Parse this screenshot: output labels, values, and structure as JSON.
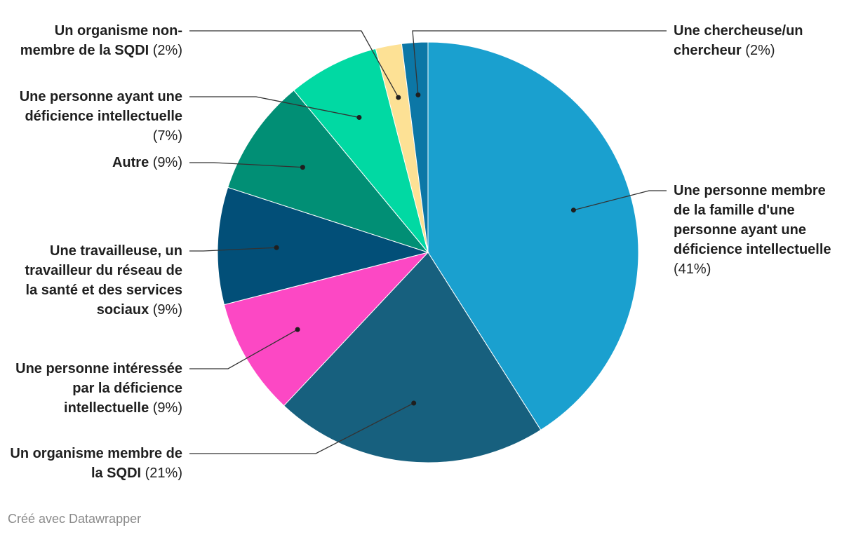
{
  "chart_data": {
    "type": "pie",
    "title": "",
    "slices": [
      {
        "label": "Une personne membre de la famille d'une personne ayant une déficience intellectuelle",
        "pct_label": "(41%)",
        "value": 41,
        "color": "#1aa0cf"
      },
      {
        "label": "Un organisme membre de la SQDI",
        "pct_label": "(21%)",
        "value": 21,
        "color": "#17607e"
      },
      {
        "label": "Une personne intéressée par la déficience intellectuelle",
        "pct_label": "(9%)",
        "value": 9,
        "color": "#fc48c4"
      },
      {
        "label": "Une travailleuse, un travailleur du réseau de la santé et des services sociaux",
        "pct_label": "(9%)",
        "value": 9,
        "color": "#024f78"
      },
      {
        "label": "Autre",
        "pct_label": "(9%)",
        "value": 9,
        "color": "#018f75"
      },
      {
        "label": "Une personne ayant une déficience intellectuelle",
        "pct_label": "(7%)",
        "value": 7,
        "color": "#01d9a3"
      },
      {
        "label": "Un organisme non-membre de la SQDI",
        "pct_label": "(2%)",
        "value": 2,
        "color": "#fde195"
      },
      {
        "label": "Une chercheuse/un chercheur",
        "pct_label": "(2%)",
        "value": 2,
        "color": "#0c77a6"
      }
    ]
  },
  "credit": "Créé avec Datawrapper"
}
